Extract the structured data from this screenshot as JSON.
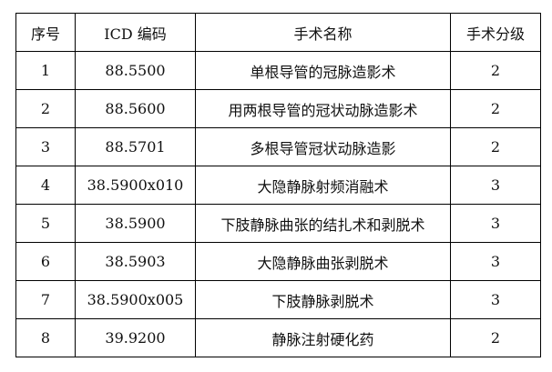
{
  "table": {
    "headers": [
      "序号",
      "ICD 编码",
      "手术名称",
      "手术分级"
    ],
    "rows": [
      [
        "1",
        "88.5500",
        "单根导管的冠脉造影术",
        "2"
      ],
      [
        "2",
        "88.5600",
        "用两根导管的冠状动脉造影术",
        "2"
      ],
      [
        "3",
        "88.5701",
        "多根导管冠状动脉造影",
        "2"
      ],
      [
        "4",
        "38.5900x010",
        "大隐静脉射频消融术",
        "3"
      ],
      [
        "5",
        "38.5900",
        "下肢静脉曲张的结扎术和剥脱术",
        "3"
      ],
      [
        "6",
        "38.5903",
        "大隐静脉曲张剥脱术",
        "3"
      ],
      [
        "7",
        "38.5900x005",
        "下肢静脉剥脱术",
        "3"
      ],
      [
        "8",
        "39.9200",
        "静脉注射硬化药",
        "2"
      ]
    ]
  }
}
